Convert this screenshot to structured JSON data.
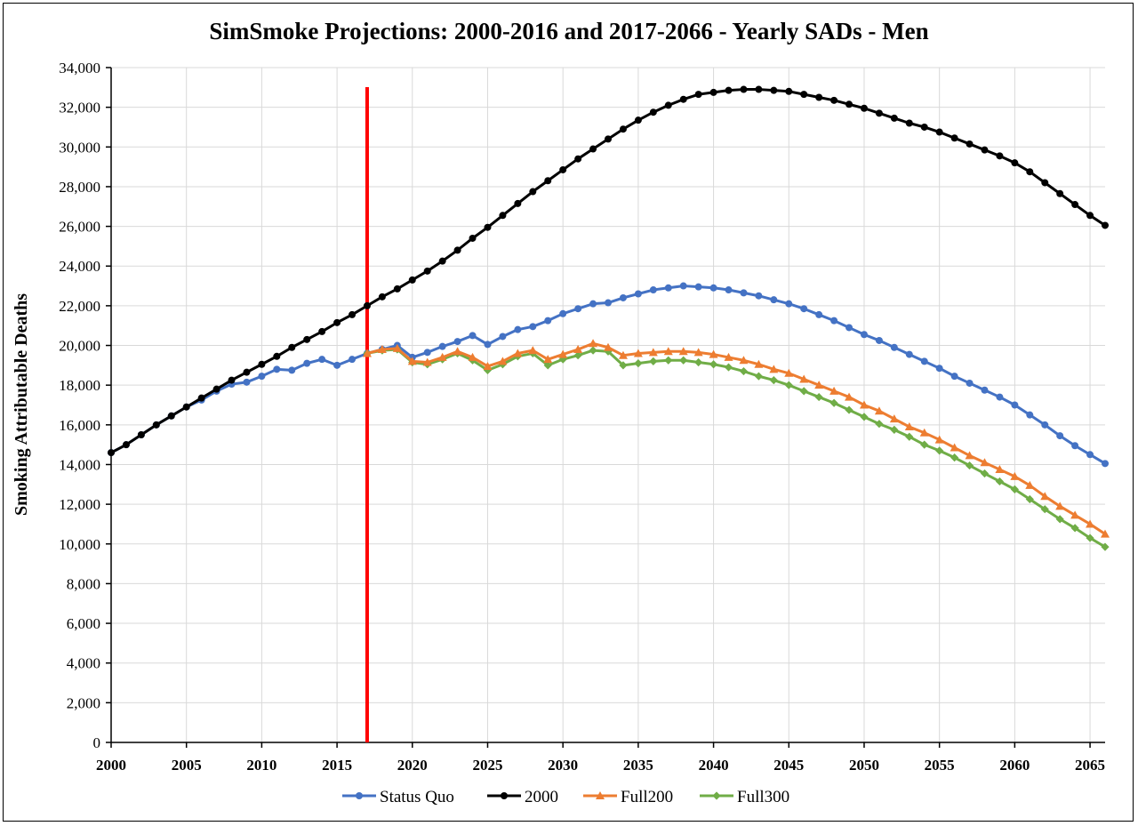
{
  "chart_data": {
    "type": "line",
    "title": "SimSmoke Projections: 2000-2016 and 2017-2066 - Yearly SADs - Men",
    "ylabel": "Smoking Attributable Deaths",
    "xlabel": "",
    "xlim": [
      2000,
      2066
    ],
    "ylim": [
      0,
      34000
    ],
    "xticks": [
      "2000",
      "2005",
      "2010",
      "2015",
      "2020",
      "2025",
      "2030",
      "2035",
      "2040",
      "2045",
      "2050",
      "2055",
      "2060",
      "2065"
    ],
    "yticks": [
      "0",
      "2,000",
      "4,000",
      "6,000",
      "8,000",
      "10,000",
      "12,000",
      "14,000",
      "16,000",
      "18,000",
      "20,000",
      "22,000",
      "24,000",
      "26,000",
      "28,000",
      "30,000",
      "32,000",
      "34,000"
    ],
    "grid": true,
    "legend_position": "bottom",
    "reference_line": {
      "x": 2017,
      "color": "#ff0000"
    },
    "x": [
      2000,
      2001,
      2002,
      2003,
      2004,
      2005,
      2006,
      2007,
      2008,
      2009,
      2010,
      2011,
      2012,
      2013,
      2014,
      2015,
      2016,
      2017,
      2018,
      2019,
      2020,
      2021,
      2022,
      2023,
      2024,
      2025,
      2026,
      2027,
      2028,
      2029,
      2030,
      2031,
      2032,
      2033,
      2034,
      2035,
      2036,
      2037,
      2038,
      2039,
      2040,
      2041,
      2042,
      2043,
      2044,
      2045,
      2046,
      2047,
      2048,
      2049,
      2050,
      2051,
      2052,
      2053,
      2054,
      2055,
      2056,
      2057,
      2058,
      2059,
      2060,
      2061,
      2062,
      2063,
      2064,
      2065,
      2066
    ],
    "series": [
      {
        "name": "Status Quo",
        "color": "#4472c4",
        "marker": "circle",
        "values": [
          14600,
          15000,
          15500,
          16000,
          16450,
          16900,
          17250,
          17700,
          18050,
          18150,
          18450,
          18800,
          18750,
          19100,
          19300,
          19000,
          19300,
          19600,
          19800,
          20000,
          19400,
          19650,
          19950,
          20200,
          20500,
          20050,
          20450,
          20800,
          20950,
          21250,
          21600,
          21850,
          22100,
          22150,
          22400,
          22600,
          22800,
          22900,
          23000,
          22950,
          22900,
          22800,
          22650,
          22500,
          22300,
          22100,
          21850,
          21550,
          21250,
          20900,
          20550,
          20250,
          19900,
          19550,
          19200,
          18850,
          18450,
          18100,
          17750,
          17400,
          17000,
          16500,
          16000,
          15450,
          14950,
          14500,
          14050
        ]
      },
      {
        "name": "2000",
        "color": "#000000",
        "marker": "circle",
        "values": [
          14600,
          15000,
          15500,
          16000,
          16450,
          16900,
          17350,
          17800,
          18250,
          18650,
          19050,
          19450,
          19900,
          20300,
          20700,
          21150,
          21550,
          22000,
          22450,
          22850,
          23300,
          23750,
          24250,
          24800,
          25400,
          25950,
          26550,
          27150,
          27750,
          28300,
          28850,
          29400,
          29900,
          30400,
          30900,
          31350,
          31750,
          32100,
          32400,
          32650,
          32750,
          32850,
          32900,
          32900,
          32850,
          32800,
          32650,
          32500,
          32350,
          32150,
          31950,
          31700,
          31450,
          31200,
          31000,
          30750,
          30450,
          30150,
          29850,
          29550,
          29200,
          28750,
          28200,
          27650,
          27100,
          26550,
          26050
        ]
      },
      {
        "name": "Full200",
        "color": "#ed7d31",
        "marker": "triangle",
        "values": [
          null,
          null,
          null,
          null,
          null,
          null,
          null,
          null,
          null,
          null,
          null,
          null,
          null,
          null,
          null,
          null,
          null,
          19600,
          19800,
          19850,
          19200,
          19150,
          19400,
          19700,
          19400,
          18950,
          19200,
          19600,
          19750,
          19300,
          19550,
          19800,
          20100,
          19900,
          19500,
          19600,
          19650,
          19700,
          19700,
          19650,
          19550,
          19400,
          19250,
          19050,
          18800,
          18600,
          18300,
          18000,
          17700,
          17400,
          17000,
          16700,
          16300,
          15900,
          15600,
          15250,
          14850,
          14450,
          14100,
          13750,
          13400,
          12950,
          12400,
          11900,
          11450,
          11000,
          10500
        ]
      },
      {
        "name": "Full300",
        "color": "#70ad47",
        "marker": "diamond",
        "values": [
          null,
          null,
          null,
          null,
          null,
          null,
          null,
          null,
          null,
          null,
          null,
          null,
          null,
          null,
          null,
          null,
          null,
          19600,
          19750,
          19800,
          19150,
          19050,
          19300,
          19600,
          19250,
          18750,
          19050,
          19450,
          19600,
          19000,
          19300,
          19500,
          19750,
          19700,
          19000,
          19100,
          19200,
          19250,
          19250,
          19150,
          19050,
          18900,
          18700,
          18450,
          18250,
          18000,
          17700,
          17400,
          17100,
          16750,
          16400,
          16050,
          15750,
          15400,
          15000,
          14700,
          14350,
          13950,
          13550,
          13150,
          12750,
          12250,
          11750,
          11250,
          10800,
          10300,
          9850
        ]
      }
    ]
  }
}
